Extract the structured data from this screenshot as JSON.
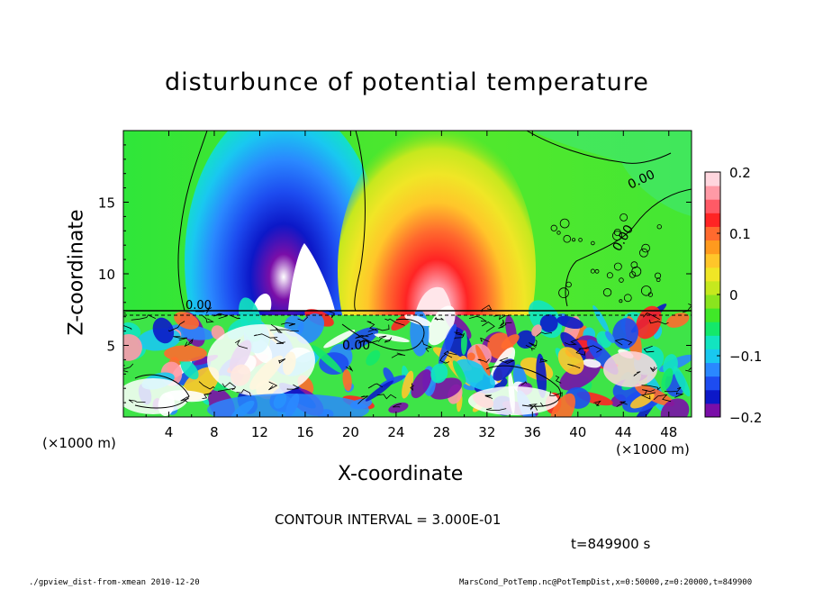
{
  "chart_data": {
    "type": "heatmap",
    "title": "disturbunce of potential temperature",
    "xlabel": "X-coordinate",
    "ylabel": "Z-coordinate",
    "x_unit_left": "(×1000 m)",
    "x_unit_right": "(×1000 m)",
    "x_ticks": [
      "4",
      "8",
      "12",
      "16",
      "20",
      "24",
      "28",
      "32",
      "36",
      "40",
      "44",
      "48"
    ],
    "y_ticks": [
      "5",
      "10",
      "15"
    ],
    "xlim": [
      0,
      50
    ],
    "ylim": [
      0,
      20
    ],
    "colorbar": {
      "range": [
        -0.2,
        0.2
      ],
      "ticks": [
        "0.2",
        "0.1",
        "0",
        "−0.1",
        "−0.2"
      ],
      "tick_values": [
        0.2,
        0.1,
        0,
        -0.1,
        -0.2
      ],
      "colors": [
        "#7a0ea8",
        "#0c18c8",
        "#1d4cf0",
        "#2a88ff",
        "#19c8f0",
        "#12e4c0",
        "#14e86a",
        "#40e828",
        "#8ae41e",
        "#c6e81e",
        "#f0e626",
        "#ffc62a",
        "#ff9a1e",
        "#ff6a2e",
        "#ff2424",
        "#ff5a66",
        "#ff9aa6",
        "#ffd6de"
      ]
    },
    "contour_labels": [
      "0.00",
      "0.00",
      "0.00",
      "0.00"
    ],
    "features": [
      {
        "kind": "cold-plume",
        "x_center": 14.5,
        "z_top": 19.5,
        "min_value": -0.2
      },
      {
        "kind": "warm-plume",
        "x_center": 28,
        "z_top": 18.5,
        "max_value": 0.2
      },
      {
        "kind": "boundary-layer-turbulence",
        "z_top": 7.5
      }
    ]
  },
  "contour_interval_text": "CONTOUR INTERVAL = 3.000E-01",
  "time_text": "t=849900 s",
  "footer_left": "./gpview_dist-from-xmean   2010-12-20",
  "footer_right": "MarsCond_PotTemp.nc@PotTempDist,x=0:50000,z=0:20000,t=849900"
}
